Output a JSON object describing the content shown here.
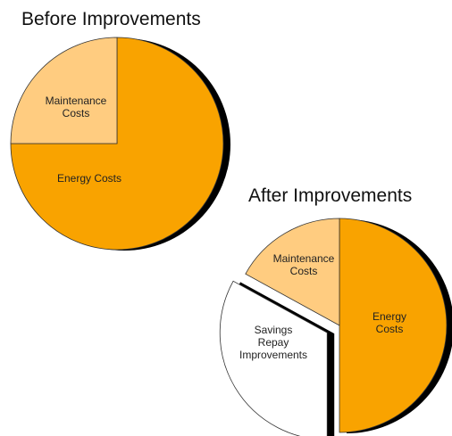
{
  "chart_data": [
    {
      "type": "pie",
      "title": "Before Improvements",
      "categories": [
        "Energy Costs",
        "Maintenance\nCosts"
      ],
      "values": [
        75,
        25
      ],
      "colors": [
        "#f9a300",
        "#ffcc80"
      ]
    },
    {
      "type": "pie",
      "title": "After Improvements",
      "categories": [
        "Energy\nCosts",
        "Savings\nRepay\nImprovements",
        "Maintenance\nCosts"
      ],
      "values": [
        50,
        33,
        17
      ],
      "colors": [
        "#f9a300",
        "#ffffff",
        "#ffcc80"
      ],
      "exploded": [
        false,
        true,
        false
      ]
    }
  ]
}
